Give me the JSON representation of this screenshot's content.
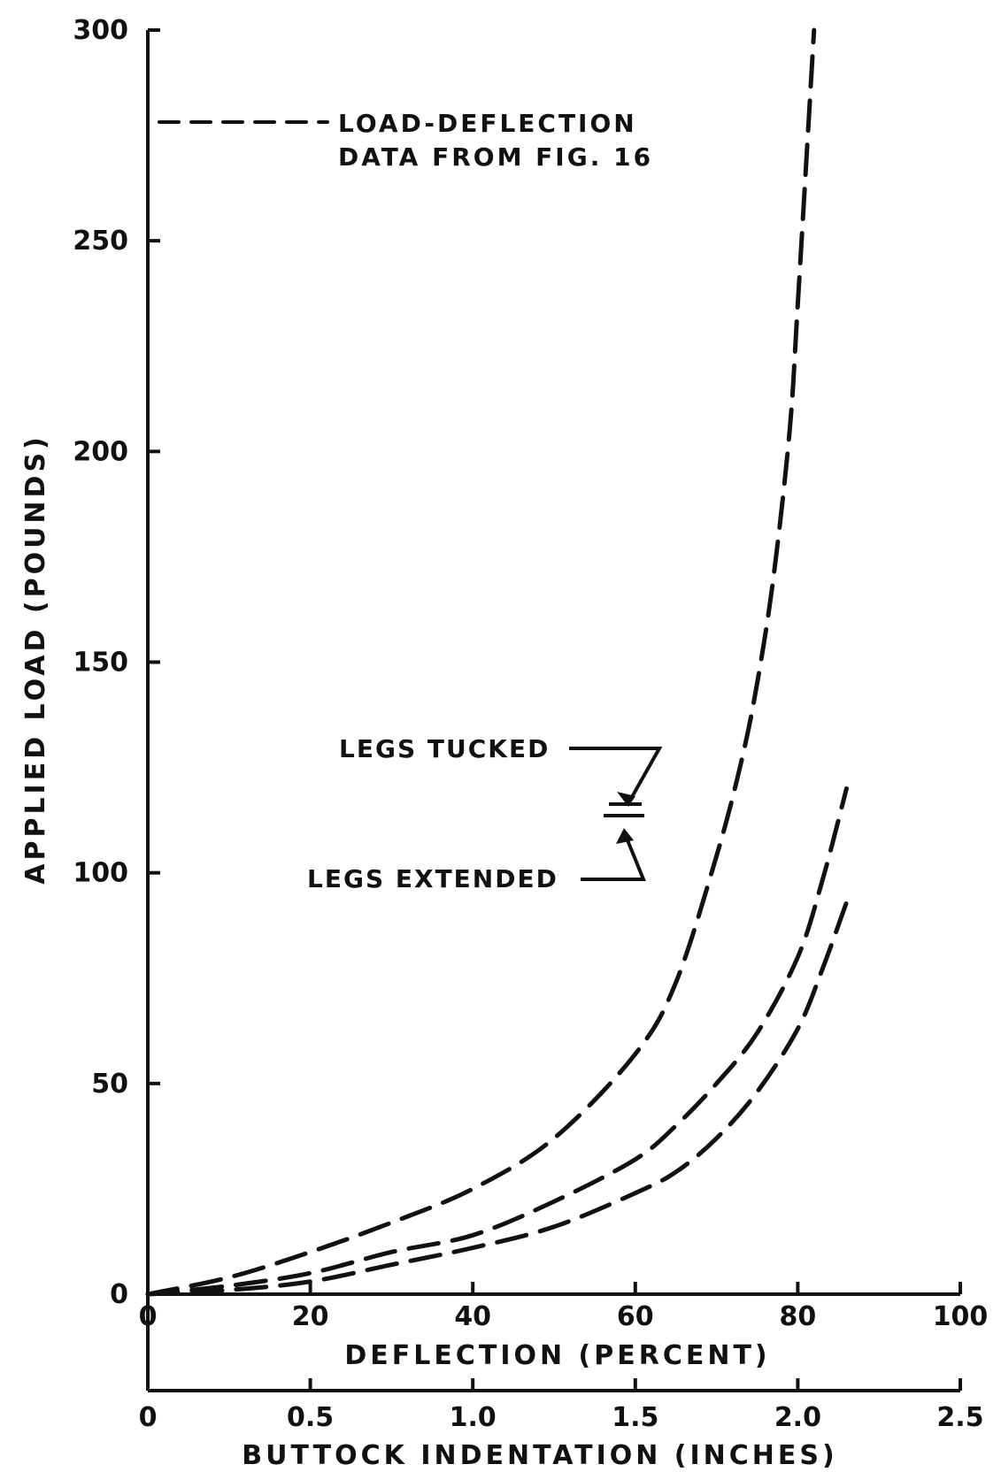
{
  "chart_data": {
    "type": "line",
    "title": "",
    "ylabel": "APPLIED LOAD (POUNDS)",
    "xlabel": "DEFLECTION (PERCENT)",
    "x2label": "BUTTOCK INDENTATION (INCHES)",
    "xlim": [
      0,
      100
    ],
    "ylim": [
      0,
      300
    ],
    "x2lim": [
      0,
      2.5
    ],
    "yticks": [
      "0",
      "50",
      "100",
      "150",
      "200",
      "250",
      "300"
    ],
    "xticks": [
      "0",
      "20",
      "40",
      "60",
      "80",
      "100"
    ],
    "x2ticks": [
      "0",
      "0.5",
      "1.0",
      "1.5",
      "2.0",
      "2.5"
    ],
    "grid": false,
    "legend": {
      "line1": "LOAD-DEFLECTION",
      "line2": "DATA FROM FIG. 16"
    },
    "annotations": {
      "tucked": "LEGS TUCKED",
      "extended": "LEGS EXTENDED"
    },
    "series": [
      {
        "x": [
          0,
          10,
          20,
          30,
          40,
          50,
          60,
          65,
          70,
          73,
          75,
          77,
          79,
          80,
          82
        ],
        "y": [
          0,
          4,
          10,
          17,
          25,
          37,
          57,
          74,
          104,
          126,
          145,
          170,
          205,
          235,
          300
        ]
      },
      {
        "x": [
          0,
          10,
          20,
          30,
          40,
          50,
          60,
          65,
          70,
          75,
          80,
          83,
          86
        ],
        "y": [
          0,
          2,
          5,
          10,
          14,
          22,
          32,
          40,
          50,
          62,
          80,
          98,
          120
        ]
      },
      {
        "x": [
          0,
          10,
          20,
          30,
          40,
          50,
          60,
          65,
          70,
          75,
          80,
          83,
          86
        ],
        "y": [
          0,
          1,
          3,
          7,
          11,
          16,
          24,
          29,
          37,
          48,
          63,
          77,
          93
        ]
      }
    ]
  }
}
